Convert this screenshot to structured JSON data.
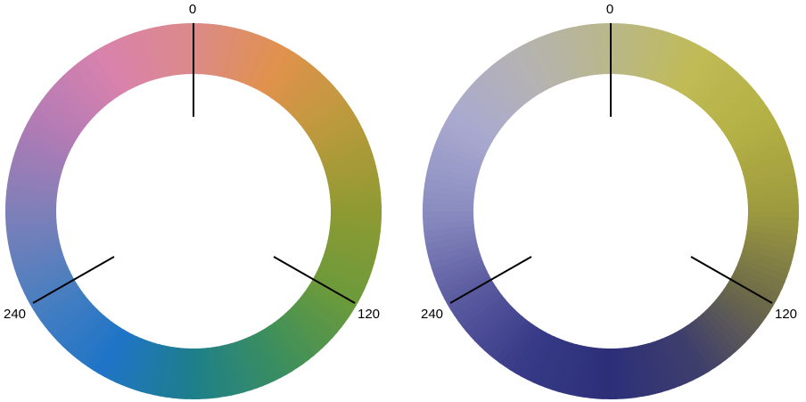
{
  "wheels": [
    {
      "labels": {
        "top": "0",
        "right": "120",
        "left": "240"
      },
      "stops": [
        {
          "angle": 0,
          "color": "#db8a88"
        },
        {
          "angle": 30,
          "color": "#e0924c"
        },
        {
          "angle": 60,
          "color": "#b99a3c"
        },
        {
          "angle": 90,
          "color": "#8e9a32"
        },
        {
          "angle": 120,
          "color": "#6c9a3b"
        },
        {
          "angle": 150,
          "color": "#3c8f5d"
        },
        {
          "angle": 180,
          "color": "#1e7f8a"
        },
        {
          "angle": 210,
          "color": "#1f74c7"
        },
        {
          "angle": 240,
          "color": "#4a7fc0"
        },
        {
          "angle": 270,
          "color": "#7f7fb8"
        },
        {
          "angle": 300,
          "color": "#b37bb5"
        },
        {
          "angle": 330,
          "color": "#d982ad"
        },
        {
          "angle": 360,
          "color": "#db8a88"
        }
      ]
    },
    {
      "labels": {
        "top": "0",
        "right": "120",
        "left": "240"
      },
      "stops": [
        {
          "angle": 0,
          "color": "#b9b78a"
        },
        {
          "angle": 30,
          "color": "#c0bb55"
        },
        {
          "angle": 60,
          "color": "#b3b044"
        },
        {
          "angle": 90,
          "color": "#9d9a3f"
        },
        {
          "angle": 120,
          "color": "#6f6c48"
        },
        {
          "angle": 150,
          "color": "#3f3e6c"
        },
        {
          "angle": 180,
          "color": "#2c2f78"
        },
        {
          "angle": 210,
          "color": "#373a86"
        },
        {
          "angle": 240,
          "color": "#5a5aa0"
        },
        {
          "angle": 270,
          "color": "#8a8cc0"
        },
        {
          "angle": 300,
          "color": "#a9a9d0"
        },
        {
          "angle": 330,
          "color": "#b5b3b2"
        },
        {
          "angle": 360,
          "color": "#b9b78a"
        }
      ]
    }
  ]
}
